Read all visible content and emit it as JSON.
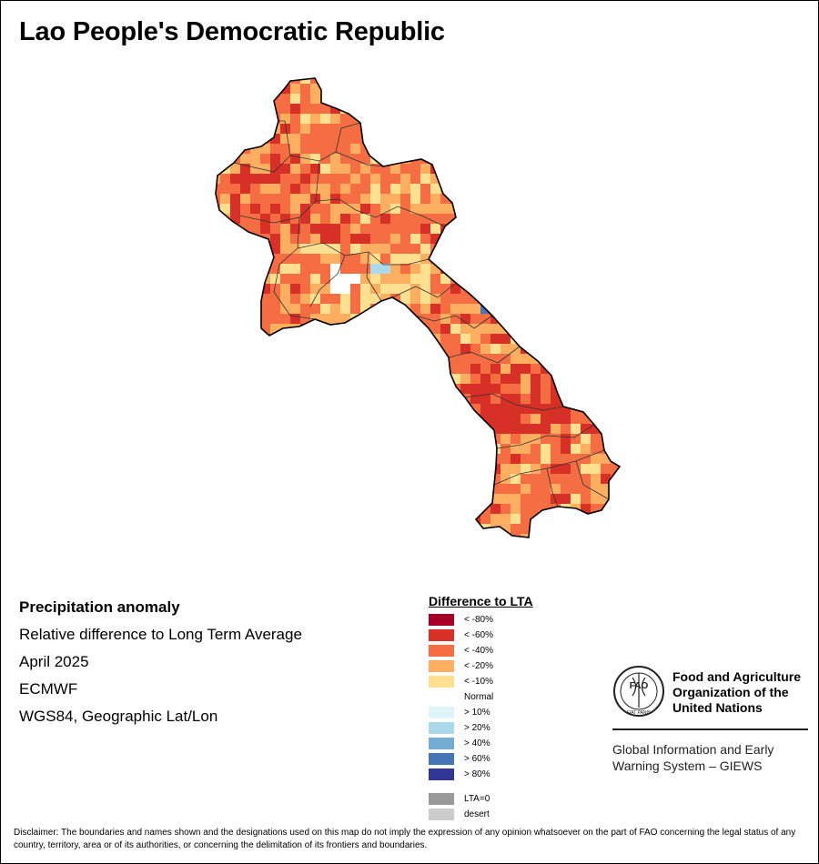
{
  "map": {
    "title": "Lao People's Democratic Republic"
  },
  "info": {
    "variable": "Precipitation anomaly",
    "description": "Relative difference to Long Term Average",
    "period": "April 2025",
    "source": "ECMWF",
    "projection": "WGS84, Geographic Lat/Lon"
  },
  "legend": {
    "title": "Difference to LTA",
    "items": [
      {
        "label": "< -80%",
        "color": "#a50026"
      },
      {
        "label": "< -60%",
        "color": "#d73027"
      },
      {
        "label": "< -40%",
        "color": "#f46d43"
      },
      {
        "label": "< -20%",
        "color": "#fdae61"
      },
      {
        "label": "< -10%",
        "color": "#fee090"
      },
      {
        "label": "Normal",
        "color": "#ffffff"
      },
      {
        "label": "> 10%",
        "color": "#e0f3f8"
      },
      {
        "label": "> 20%",
        "color": "#abd9e9"
      },
      {
        "label": "> 40%",
        "color": "#74add1"
      },
      {
        "label": "> 60%",
        "color": "#4575b4"
      },
      {
        "label": "> 80%",
        "color": "#313695"
      },
      {
        "label": "LTA=0",
        "color": "#999999"
      },
      {
        "label": "desert",
        "color": "#cccccc"
      }
    ]
  },
  "fao": {
    "logo_text": "FAO",
    "logo_motto": "FIAT PANIS",
    "org_name": "Food and Agriculture Organization of the United Nations",
    "system_name": "Global Information and Early Warning System – GIEWS"
  },
  "disclaimer": "Disclaimer: The boundaries and names shown and the designations used on this map do not imply the expression of any opinion whatsoever on the part of FAO concerning the legal status of any country, territory, area or of its authorities, or concerning the delimitation of its frontiers and boundaries."
}
